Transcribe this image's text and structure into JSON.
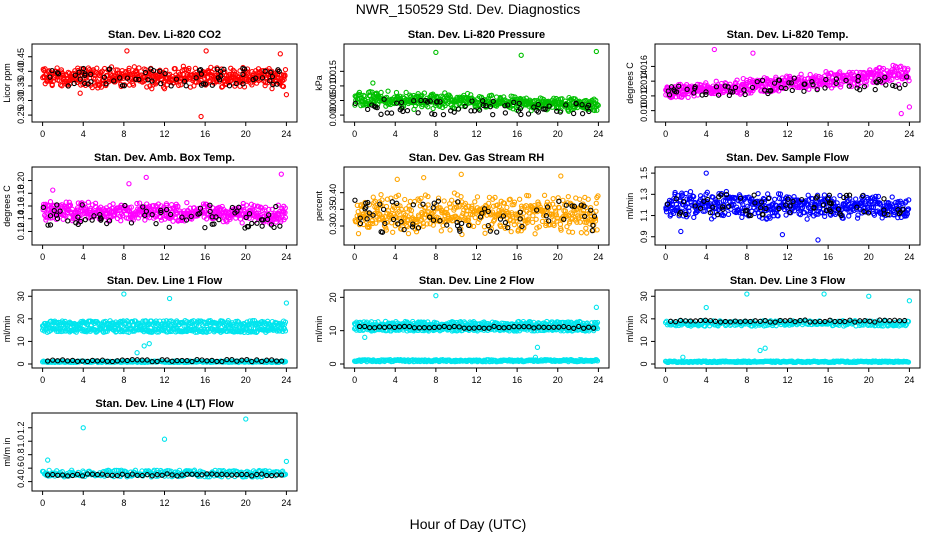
{
  "figure": {
    "title": "NWR_150529  Std. Dev. Diagnostics",
    "xlabel": "Hour of Day (UTC)",
    "colors": {
      "red": "#ff0000",
      "green": "#00c000",
      "magenta": "#ff00ff",
      "orange": "#ffa500",
      "blue": "#0000ff",
      "cyan": "#00e5ee",
      "black": "#000000"
    }
  },
  "chart_data": [
    {
      "type": "scatter",
      "title": "Stan. Dev. Li-820 CO2",
      "ylabel": "Licor ppm",
      "color": "red",
      "xlim": [
        0,
        24
      ],
      "ylim": [
        0.24,
        0.48
      ],
      "yticks": [
        "0.25",
        "0.30",
        "0.35",
        "0.40",
        "0.45"
      ],
      "ytick_values": [
        0.25,
        0.3,
        0.35,
        0.4,
        0.45
      ],
      "xticks": [
        0,
        4,
        8,
        12,
        16,
        20,
        24
      ],
      "band": {
        "low": [
          0.34,
          0.34
        ],
        "high": [
          0.42,
          0.42
        ]
      },
      "outliers": [
        {
          "x": 8.3,
          "y": 0.47
        },
        {
          "x": 16.1,
          "y": 0.47
        },
        {
          "x": 23.4,
          "y": 0.46
        },
        {
          "x": 15.6,
          "y": 0.245
        },
        {
          "x": 24,
          "y": 0.32
        },
        {
          "x": 3.7,
          "y": 0.325
        }
      ],
      "black_overlay": {
        "low": [
          0.35,
          0.35
        ],
        "high": [
          0.41,
          0.41
        ]
      }
    },
    {
      "type": "scatter",
      "title": "Stan. Dev. Li-820 Pressure",
      "ylabel": "kPa",
      "color": "green",
      "xlim": [
        0,
        24
      ],
      "ylim": [
        -0.001,
        0.023
      ],
      "yticks": [
        "0.000",
        "0.005",
        "0.010",
        "0.015"
      ],
      "ytick_values": [
        0.0,
        0.005,
        0.01,
        0.015
      ],
      "xticks": [
        0,
        4,
        8,
        12,
        16,
        20,
        24
      ],
      "band": {
        "low": [
          0.002,
          0.001
        ],
        "high": [
          0.009,
          0.006
        ]
      },
      "outliers": [
        {
          "x": 8.0,
          "y": 0.0215
        },
        {
          "x": 16.4,
          "y": 0.0205
        },
        {
          "x": 23.8,
          "y": 0.0218
        },
        {
          "x": 1.8,
          "y": 0.011
        }
      ],
      "black_overlay": {
        "low": [
          0.0,
          0.0
        ],
        "high": [
          0.006,
          0.004
        ]
      }
    },
    {
      "type": "scatter",
      "title": "Stan. Dev. Li-820 Temp.",
      "ylabel": "degrees C",
      "color": "magenta",
      "xlim": [
        0,
        24
      ],
      "ylim": [
        0.009,
        0.0185
      ],
      "yticks": [
        "0.010",
        "0.012",
        "0.014",
        "0.016"
      ],
      "ytick_values": [
        0.01,
        0.012,
        0.014,
        0.016
      ],
      "xticks": [
        0,
        4,
        8,
        12,
        16,
        20,
        24
      ],
      "band": {
        "low": [
          0.0115,
          0.0135
        ],
        "high": [
          0.0135,
          0.0165
        ]
      },
      "outliers": [
        {
          "x": 4.8,
          "y": 0.0183
        },
        {
          "x": 8.6,
          "y": 0.0178
        },
        {
          "x": 23.2,
          "y": 0.0096
        },
        {
          "x": 24,
          "y": 0.0105
        }
      ],
      "black_overlay": {
        "low": [
          0.0118,
          0.0128
        ],
        "high": [
          0.0132,
          0.0155
        ]
      }
    },
    {
      "type": "scatter",
      "title": "Stan. Dev. Amb. Box Temp.",
      "ylabel": "degrees C",
      "color": "magenta",
      "xlim": [
        0,
        24
      ],
      "ylim": [
        0.105,
        0.215
      ],
      "yticks": [
        "0.12",
        "0.14",
        "0.16",
        "0.18",
        "0.20"
      ],
      "ytick_values": [
        0.12,
        0.14,
        0.16,
        0.18,
        0.2
      ],
      "xticks": [
        0,
        4,
        8,
        12,
        16,
        20,
        24
      ],
      "band": {
        "low": [
          0.135,
          0.13
        ],
        "high": [
          0.17,
          0.165
        ]
      },
      "outliers": [
        {
          "x": 8.5,
          "y": 0.195
        },
        {
          "x": 10.2,
          "y": 0.205
        },
        {
          "x": 23.5,
          "y": 0.21
        },
        {
          "x": 1.0,
          "y": 0.185
        }
      ],
      "black_overlay": {
        "low": [
          0.125,
          0.125
        ],
        "high": [
          0.165,
          0.16
        ]
      }
    },
    {
      "type": "scatter",
      "title": "Stan. Dev. Gas Stream RH",
      "ylabel": "percent",
      "color": "orange",
      "xlim": [
        0,
        24
      ],
      "ylim": [
        0.255,
        0.465
      ],
      "yticks": [
        "0.30",
        "0.35",
        "0.40"
      ],
      "ytick_values": [
        0.3,
        0.35,
        0.4
      ],
      "xticks": [
        0,
        4,
        8,
        12,
        16,
        20,
        24
      ],
      "band": {
        "low": [
          0.27,
          0.27
        ],
        "high": [
          0.4,
          0.4
        ]
      },
      "outliers": [
        {
          "x": 4.2,
          "y": 0.44
        },
        {
          "x": 6.8,
          "y": 0.445
        },
        {
          "x": 10.5,
          "y": 0.455
        },
        {
          "x": 20.3,
          "y": 0.45
        }
      ],
      "black_overlay": {
        "low": [
          0.28,
          0.28
        ],
        "high": [
          0.38,
          0.38
        ]
      }
    },
    {
      "type": "scatter",
      "title": "Stan. Dev. Sample Flow",
      "ylabel": "ml/min",
      "color": "blue",
      "xlim": [
        0,
        24
      ],
      "ylim": [
        0.86,
        1.52
      ],
      "yticks": [
        "0.9",
        "1.1",
        "1.3",
        "1.5"
      ],
      "ytick_values": [
        0.9,
        1.1,
        1.3,
        1.5
      ],
      "xticks": [
        0,
        4,
        8,
        12,
        16,
        20,
        24
      ],
      "band": {
        "low": [
          1.05,
          1.05
        ],
        "high": [
          1.35,
          1.3
        ]
      },
      "outliers": [
        {
          "x": 4.0,
          "y": 1.5
        },
        {
          "x": 15.0,
          "y": 0.87
        },
        {
          "x": 1.5,
          "y": 0.95
        },
        {
          "x": 11.5,
          "y": 0.92
        }
      ],
      "black_overlay": {
        "low": [
          1.1,
          1.1
        ],
        "high": [
          1.3,
          1.3
        ]
      }
    },
    {
      "type": "scatter",
      "title": "Stan. Dev. Line 1 Flow",
      "ylabel": "ml/min",
      "color": "cyan",
      "xlim": [
        0,
        24
      ],
      "ylim": [
        0,
        31
      ],
      "yticks": [
        "0",
        "10",
        "20",
        "30"
      ],
      "ytick_values": [
        0,
        10,
        20,
        30
      ],
      "xticks": [
        0,
        4,
        8,
        12,
        16,
        20,
        24
      ],
      "levels": [
        {
          "y": 18,
          "spread": 1.2
        },
        {
          "y": 15,
          "spread": 1.0
        },
        {
          "y": 1,
          "spread": 0.3
        }
      ],
      "outliers": [
        {
          "x": 8.0,
          "y": 31
        },
        {
          "x": 12.5,
          "y": 29
        },
        {
          "x": 24,
          "y": 27
        },
        {
          "x": 9.3,
          "y": 5
        },
        {
          "x": 10.0,
          "y": 8
        },
        {
          "x": 10.5,
          "y": 9
        }
      ],
      "black_level": {
        "y": 1.5
      }
    },
    {
      "type": "scatter",
      "title": "Stan. Dev. Line 2 Flow",
      "ylabel": "ml/min",
      "color": "cyan",
      "xlim": [
        0,
        24
      ],
      "ylim": [
        0,
        21
      ],
      "yticks": [
        "0",
        "10",
        "20"
      ],
      "ytick_values": [
        0,
        10,
        20
      ],
      "xticks": [
        0,
        4,
        8,
        12,
        16,
        20,
        24
      ],
      "levels": [
        {
          "y": 12,
          "spread": 0.8
        },
        {
          "y": 10.5,
          "spread": 0.6
        },
        {
          "y": 1,
          "spread": 0.3
        }
      ],
      "outliers": [
        {
          "x": 8.0,
          "y": 20.5
        },
        {
          "x": 23.8,
          "y": 17
        },
        {
          "x": 17.8,
          "y": 2
        },
        {
          "x": 18.0,
          "y": 5
        },
        {
          "x": 1.0,
          "y": 8
        }
      ],
      "black_level": {
        "y": 11
      }
    },
    {
      "type": "scatter",
      "title": "Stan. Dev. Line 3 Flow",
      "ylabel": "ml/min",
      "color": "cyan",
      "xlim": [
        0,
        24
      ],
      "ylim": [
        0,
        31
      ],
      "yticks": [
        "0",
        "10",
        "20",
        "30"
      ],
      "ytick_values": [
        0,
        10,
        20,
        30
      ],
      "xticks": [
        0,
        4,
        8,
        12,
        16,
        20,
        24
      ],
      "levels": [
        {
          "y": 18,
          "spread": 1.2
        },
        {
          "y": 1,
          "spread": 0.3
        }
      ],
      "outliers": [
        {
          "x": 8.0,
          "y": 31
        },
        {
          "x": 15.6,
          "y": 31
        },
        {
          "x": 20.0,
          "y": 30
        },
        {
          "x": 24,
          "y": 28
        },
        {
          "x": 4.0,
          "y": 25
        },
        {
          "x": 9.3,
          "y": 6
        },
        {
          "x": 9.8,
          "y": 7
        },
        {
          "x": 1.7,
          "y": 3
        }
      ],
      "black_level": {
        "y": 19
      }
    },
    {
      "type": "scatter",
      "title": "Stan. Dev. Line 4 (LT) Flow",
      "ylabel": "ml/m in",
      "color": "cyan",
      "xlim": [
        0,
        24
      ],
      "ylim": [
        0.32,
        1.36
      ],
      "yticks": [
        "0.4",
        "0.6",
        "0.8",
        "1.0",
        "1.2"
      ],
      "ytick_values": [
        0.4,
        0.6,
        0.8,
        1.0,
        1.2
      ],
      "xticks": [
        0,
        4,
        8,
        12,
        16,
        20,
        24
      ],
      "levels": [
        {
          "y": 0.52,
          "spread": 0.05
        }
      ],
      "outliers": [
        {
          "x": 4.0,
          "y": 1.2
        },
        {
          "x": 12.0,
          "y": 1.03
        },
        {
          "x": 20.0,
          "y": 1.33
        },
        {
          "x": 24,
          "y": 0.7
        },
        {
          "x": 0.5,
          "y": 0.72
        }
      ],
      "black_level": {
        "y": 0.5
      }
    }
  ]
}
